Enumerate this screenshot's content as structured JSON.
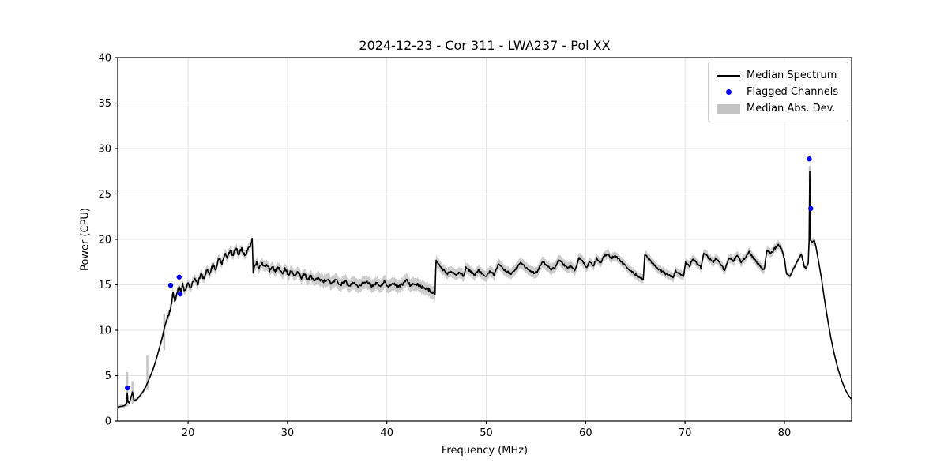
{
  "title": "2024-12-23 - Cor 311 - LWA237 - Pol XX",
  "xlabel": "Frequency (MHz)",
  "ylabel": "Power (CPU)",
  "legend": {
    "items": [
      {
        "label": "Median Spectrum",
        "marker": "line",
        "color": "#000000"
      },
      {
        "label": "Flagged Channels",
        "marker": "dot",
        "color": "#0000ff"
      },
      {
        "label": "Median Abs. Dev.",
        "marker": "patch",
        "color": "#c4c4c4"
      }
    ]
  },
  "colors": {
    "spectrum": "#000000",
    "flagged": "#0000ff",
    "mad_band": "#c4c4c4",
    "grid": "#e3e3e3",
    "axes": "#000000",
    "background": "#ffffff"
  },
  "chart_data": {
    "type": "line",
    "title": "2024-12-23 - Cor 311 - LWA237 - Pol XX",
    "xlabel": "Frequency (MHz)",
    "ylabel": "Power (CPU)",
    "xlim": [
      12.92,
      86.76
    ],
    "ylim": [
      0,
      40
    ],
    "xticks": [
      20,
      30,
      40,
      50,
      60,
      70,
      80
    ],
    "yticks": [
      0,
      5,
      10,
      15,
      20,
      25,
      30,
      35,
      40
    ],
    "grid": true,
    "legend_position": "upper right",
    "series": [
      {
        "name": "Median Spectrum",
        "color": "#000000",
        "points": [
          [
            12.92,
            1.5
          ],
          [
            13.15,
            1.6
          ],
          [
            13.35,
            1.62
          ],
          [
            13.6,
            1.7
          ],
          [
            13.8,
            1.9
          ],
          [
            13.88,
            3.1
          ],
          [
            13.95,
            2.1
          ],
          [
            14.1,
            2.0
          ],
          [
            14.4,
            3.2
          ],
          [
            14.55,
            2.3
          ],
          [
            14.8,
            2.35
          ],
          [
            15.1,
            2.7
          ],
          [
            15.45,
            3.2
          ],
          [
            15.8,
            3.9
          ],
          [
            16.1,
            4.7
          ],
          [
            16.45,
            5.6
          ],
          [
            16.8,
            6.8
          ],
          [
            17.1,
            8.0
          ],
          [
            17.45,
            9.4
          ],
          [
            17.6,
            10.2
          ],
          [
            17.8,
            11.0
          ],
          [
            18.0,
            11.5
          ],
          [
            18.2,
            12.3
          ],
          [
            18.35,
            13.0
          ],
          [
            18.5,
            14.3
          ],
          [
            18.65,
            13.1
          ],
          [
            18.8,
            13.6
          ],
          [
            18.95,
            14.4
          ],
          [
            19.1,
            14.9
          ],
          [
            19.25,
            14.2
          ],
          [
            19.45,
            15.1
          ],
          [
            19.6,
            14.3
          ],
          [
            19.8,
            14.6
          ],
          [
            20.0,
            15.1
          ],
          [
            20.2,
            14.5
          ],
          [
            20.5,
            15.3
          ],
          [
            20.75,
            15.7
          ],
          [
            21.0,
            15.1
          ],
          [
            21.3,
            16.2
          ],
          [
            21.6,
            15.7
          ],
          [
            21.9,
            16.7
          ],
          [
            22.2,
            16.2
          ],
          [
            22.5,
            17.2
          ],
          [
            22.8,
            16.7
          ],
          [
            23.1,
            17.9
          ],
          [
            23.4,
            17.4
          ],
          [
            23.7,
            18.5
          ],
          [
            24.0,
            18.0
          ],
          [
            24.25,
            18.9
          ],
          [
            24.5,
            18.3
          ],
          [
            24.8,
            19.0
          ],
          [
            25.1,
            18.4
          ],
          [
            25.4,
            18.9
          ],
          [
            25.7,
            18.3
          ],
          [
            26.0,
            18.8
          ],
          [
            26.25,
            19.1
          ],
          [
            26.45,
            20.1
          ],
          [
            26.55,
            16.3
          ],
          [
            26.7,
            17.0
          ],
          [
            26.9,
            17.4
          ],
          [
            27.15,
            16.7
          ],
          [
            27.4,
            17.4
          ],
          [
            27.65,
            16.9
          ],
          [
            27.9,
            17.3
          ],
          [
            28.2,
            16.6
          ],
          [
            28.5,
            17.1
          ],
          [
            28.8,
            16.4
          ],
          [
            29.1,
            16.9
          ],
          [
            29.45,
            16.2
          ],
          [
            29.75,
            16.8
          ],
          [
            30.1,
            16.1
          ],
          [
            30.4,
            16.6
          ],
          [
            30.75,
            15.9
          ],
          [
            31.05,
            16.4
          ],
          [
            31.4,
            15.8
          ],
          [
            31.7,
            16.2
          ],
          [
            32.0,
            15.6
          ],
          [
            32.35,
            16.0
          ],
          [
            32.7,
            15.5
          ],
          [
            33.1,
            15.8
          ],
          [
            33.5,
            15.3
          ],
          [
            34.0,
            15.6
          ],
          [
            34.4,
            15.1
          ],
          [
            34.9,
            15.5
          ],
          [
            35.3,
            15.0
          ],
          [
            35.8,
            15.4
          ],
          [
            36.2,
            14.9
          ],
          [
            36.7,
            15.2
          ],
          [
            37.1,
            14.8
          ],
          [
            37.6,
            15.2
          ],
          [
            38.0,
            15.4
          ],
          [
            38.4,
            14.8
          ],
          [
            38.9,
            15.2
          ],
          [
            39.3,
            14.9
          ],
          [
            39.8,
            15.3
          ],
          [
            40.2,
            14.8
          ],
          [
            40.7,
            15.2
          ],
          [
            41.1,
            14.8
          ],
          [
            41.6,
            15.1
          ],
          [
            42.0,
            15.5
          ],
          [
            42.4,
            14.9
          ],
          [
            42.9,
            15.1
          ],
          [
            43.4,
            14.8
          ],
          [
            43.9,
            14.6
          ],
          [
            44.4,
            14.3
          ],
          [
            44.85,
            13.95
          ],
          [
            44.95,
            17.7
          ],
          [
            45.3,
            17.1
          ],
          [
            45.7,
            16.6
          ],
          [
            46.1,
            16.2
          ],
          [
            46.5,
            16.5
          ],
          [
            46.9,
            16.1
          ],
          [
            47.3,
            16.4
          ],
          [
            47.7,
            16.0
          ],
          [
            47.95,
            16.9
          ],
          [
            48.4,
            16.5
          ],
          [
            48.8,
            16.1
          ],
          [
            49.2,
            16.6
          ],
          [
            49.6,
            16.2
          ],
          [
            50.0,
            16.0
          ],
          [
            50.4,
            16.5
          ],
          [
            50.8,
            16.1
          ],
          [
            51.2,
            17.3
          ],
          [
            51.6,
            16.9
          ],
          [
            52.0,
            16.5
          ],
          [
            52.5,
            16.2
          ],
          [
            52.9,
            16.6
          ],
          [
            53.4,
            17.4
          ],
          [
            53.9,
            17.0
          ],
          [
            54.3,
            16.6
          ],
          [
            54.8,
            16.3
          ],
          [
            55.2,
            16.5
          ],
          [
            55.65,
            17.6
          ],
          [
            56.1,
            17.1
          ],
          [
            56.5,
            16.7
          ],
          [
            56.9,
            16.9
          ],
          [
            57.25,
            17.8
          ],
          [
            57.7,
            17.3
          ],
          [
            58.1,
            16.9
          ],
          [
            58.5,
            17.1
          ],
          [
            58.9,
            16.6
          ],
          [
            59.35,
            18.0
          ],
          [
            59.8,
            17.4
          ],
          [
            60.1,
            16.9
          ],
          [
            60.45,
            17.6
          ],
          [
            60.8,
            17.1
          ],
          [
            61.1,
            17.9
          ],
          [
            61.5,
            17.4
          ],
          [
            61.85,
            18.2
          ],
          [
            62.25,
            18.4
          ],
          [
            62.6,
            17.9
          ],
          [
            62.95,
            18.3
          ],
          [
            63.35,
            17.8
          ],
          [
            63.8,
            17.3
          ],
          [
            64.3,
            16.8
          ],
          [
            64.8,
            16.3
          ],
          [
            65.3,
            15.9
          ],
          [
            65.8,
            15.6
          ],
          [
            65.95,
            18.3
          ],
          [
            66.4,
            17.8
          ],
          [
            66.9,
            17.2
          ],
          [
            67.4,
            16.7
          ],
          [
            67.9,
            16.3
          ],
          [
            68.4,
            16.0
          ],
          [
            68.85,
            15.8
          ],
          [
            69.05,
            16.6
          ],
          [
            69.45,
            16.2
          ],
          [
            69.85,
            16.0
          ],
          [
            70.05,
            17.4
          ],
          [
            70.45,
            17.0
          ],
          [
            70.8,
            17.9
          ],
          [
            71.2,
            17.4
          ],
          [
            71.6,
            16.9
          ],
          [
            71.9,
            18.5
          ],
          [
            72.35,
            18.0
          ],
          [
            72.8,
            17.5
          ],
          [
            73.2,
            17.9
          ],
          [
            73.6,
            17.3
          ],
          [
            74.0,
            16.5
          ],
          [
            74.4,
            18.0
          ],
          [
            74.85,
            17.6
          ],
          [
            75.25,
            18.3
          ],
          [
            75.65,
            17.5
          ],
          [
            76.05,
            18.0
          ],
          [
            76.45,
            18.6
          ],
          [
            76.95,
            17.9
          ],
          [
            77.45,
            17.2
          ],
          [
            77.95,
            16.6
          ],
          [
            78.25,
            18.9
          ],
          [
            78.65,
            18.4
          ],
          [
            79.0,
            19.0
          ],
          [
            79.4,
            19.4
          ],
          [
            79.75,
            18.9
          ],
          [
            80.0,
            17.8
          ],
          [
            80.2,
            16.3
          ],
          [
            80.55,
            15.95
          ],
          [
            80.9,
            16.8
          ],
          [
            81.3,
            17.6
          ],
          [
            81.7,
            18.4
          ],
          [
            82.0,
            17.0
          ],
          [
            82.2,
            16.8
          ],
          [
            82.4,
            17.4
          ],
          [
            82.48,
            19.8
          ],
          [
            82.55,
            27.5
          ],
          [
            82.62,
            19.9
          ],
          [
            82.8,
            19.7
          ],
          [
            83.0,
            19.9
          ],
          [
            83.15,
            19.3
          ],
          [
            83.4,
            17.8
          ],
          [
            83.7,
            15.9
          ],
          [
            84.0,
            13.6
          ],
          [
            84.35,
            11.2
          ],
          [
            84.7,
            9.0
          ],
          [
            85.05,
            7.2
          ],
          [
            85.4,
            5.7
          ],
          [
            85.75,
            4.5
          ],
          [
            86.1,
            3.5
          ],
          [
            86.4,
            2.9
          ],
          [
            86.6,
            2.6
          ],
          [
            86.75,
            2.45
          ]
        ],
        "noise_regions": [
          {
            "from": 18.0,
            "to": 26.4,
            "amp": 0.22
          },
          {
            "from": 26.6,
            "to": 44.8,
            "amp": 0.18
          },
          {
            "from": 45.0,
            "to": 60.0,
            "amp": 0.13
          },
          {
            "from": 60.0,
            "to": 80.0,
            "amp": 0.13
          },
          {
            "from": 80.0,
            "to": 82.3,
            "amp": 0.08
          }
        ]
      },
      {
        "name": "Flagged Channels",
        "color": "#0000ff",
        "points": [
          [
            13.9,
            3.65
          ],
          [
            18.25,
            14.95
          ],
          [
            19.1,
            15.85
          ],
          [
            19.2,
            14.0
          ],
          [
            82.5,
            28.85
          ],
          [
            82.65,
            23.4
          ]
        ]
      }
    ],
    "mad_band": {
      "name": "Median Abs. Dev.",
      "color": "#c4c4c4",
      "regions": [
        {
          "from": 12.92,
          "to": 17.3,
          "half_width": 0.22
        },
        {
          "from": 17.3,
          "to": 26.5,
          "half_width": 0.5
        },
        {
          "from": 26.5,
          "to": 33.0,
          "half_width": 0.6
        },
        {
          "from": 33.0,
          "to": 45.0,
          "half_width": 0.72
        },
        {
          "from": 45.0,
          "to": 60.0,
          "half_width": 0.6
        },
        {
          "from": 60.0,
          "to": 80.0,
          "half_width": 0.5
        },
        {
          "from": 80.0,
          "to": 82.3,
          "half_width": 0.3
        },
        {
          "from": 82.3,
          "to": 83.2,
          "half_width": 0.4
        },
        {
          "from": 83.2,
          "to": 86.76,
          "half_width": 0.13
        }
      ],
      "spikes": [
        [
          13.88,
          1.6,
          5.4
        ],
        [
          14.4,
          1.9,
          4.4
        ],
        [
          15.9,
          3.4,
          7.2
        ],
        [
          17.6,
          7.8,
          11.8
        ],
        [
          82.55,
          26.3,
          28.1
        ]
      ]
    }
  }
}
